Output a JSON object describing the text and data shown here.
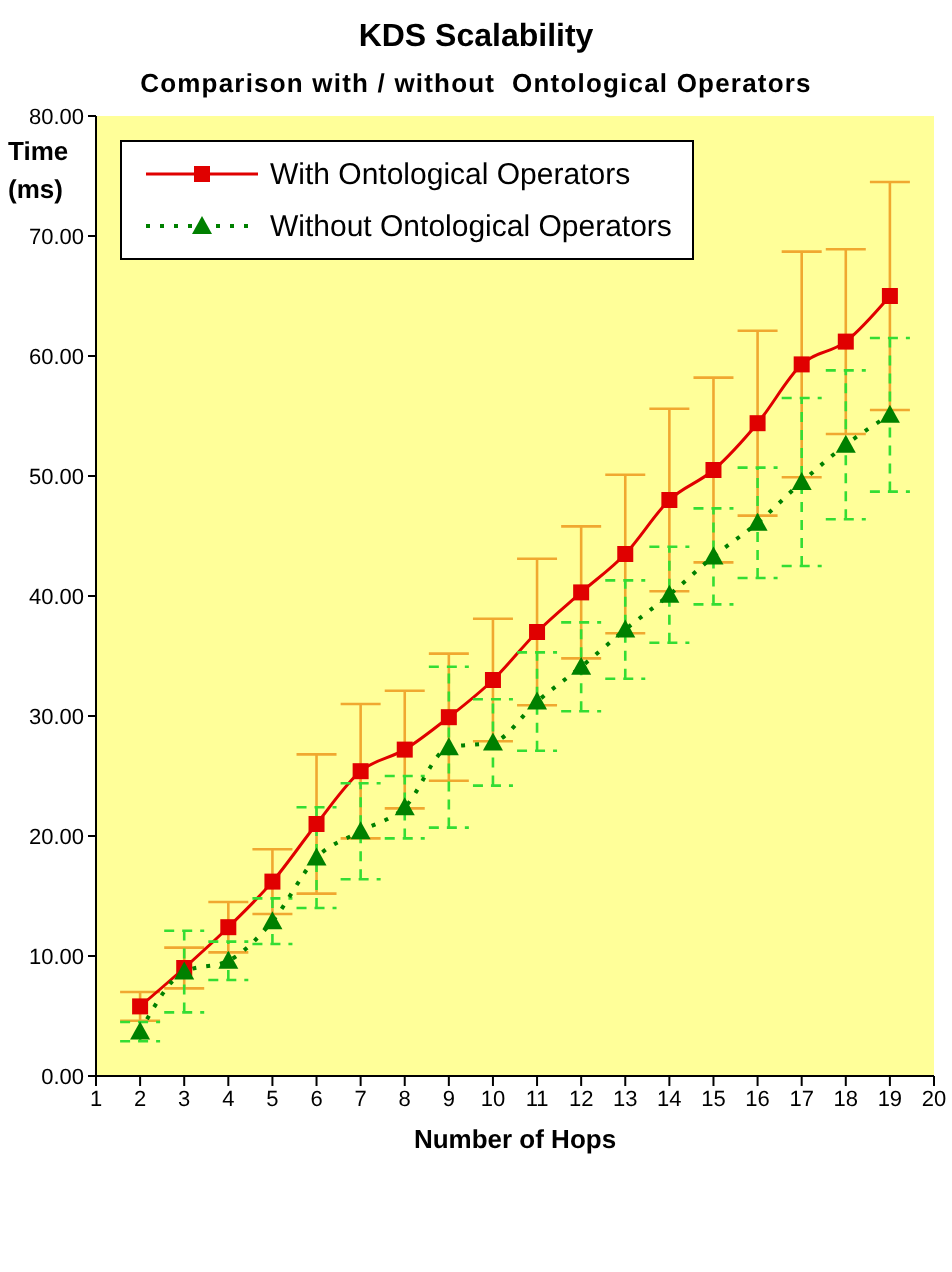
{
  "chart_data": {
    "type": "line",
    "title": "KDS Scalability",
    "subtitle": "Comparison with / without  Ontological Operators",
    "xlabel": "Number of Hops",
    "ylabel": "Time (ms)",
    "x": [
      2,
      3,
      4,
      5,
      6,
      7,
      8,
      9,
      10,
      11,
      12,
      13,
      14,
      15,
      16,
      17,
      18,
      19
    ],
    "series": [
      {
        "name": "With Ontological Operators",
        "color": "#e00000",
        "marker": "square",
        "line_style": "solid",
        "values": [
          5.8,
          9.0,
          12.4,
          16.2,
          21.0,
          25.4,
          27.2,
          29.9,
          33.0,
          37.0,
          40.3,
          43.5,
          48.0,
          50.5,
          54.4,
          59.3,
          61.2,
          65.0
        ],
        "errors": [
          1.2,
          1.7,
          2.1,
          2.7,
          5.8,
          5.6,
          4.9,
          5.3,
          5.1,
          6.1,
          5.5,
          6.6,
          7.6,
          7.7,
          7.7,
          9.4,
          7.7,
          9.5
        ]
      },
      {
        "name": "Without Ontological Operators",
        "color": "#008000",
        "marker": "triangle",
        "line_style": "dotted",
        "values": [
          3.7,
          8.7,
          9.6,
          12.9,
          18.2,
          20.4,
          22.4,
          27.4,
          27.8,
          31.2,
          34.1,
          37.2,
          40.1,
          43.3,
          46.1,
          49.5,
          52.6,
          55.1
        ],
        "errors": [
          0.8,
          3.4,
          1.6,
          1.9,
          4.2,
          4.0,
          2.6,
          6.7,
          3.6,
          4.1,
          3.7,
          4.1,
          4.0,
          4.0,
          4.6,
          7.0,
          6.2,
          6.4
        ]
      }
    ],
    "xlim": [
      1,
      20
    ],
    "xticks": [
      1,
      2,
      3,
      4,
      5,
      6,
      7,
      8,
      9,
      10,
      11,
      12,
      13,
      14,
      15,
      16,
      17,
      18,
      19,
      20
    ],
    "ylim": [
      0,
      80
    ],
    "yticks": [
      {
        "value": 0,
        "label": "0.00"
      },
      {
        "value": 10,
        "label": "10.00"
      },
      {
        "value": 20,
        "label": "20.00"
      },
      {
        "value": 30,
        "label": "30.00"
      },
      {
        "value": 40,
        "label": "40.00"
      },
      {
        "value": 50,
        "label": "50.00"
      },
      {
        "value": 60,
        "label": "60.00"
      },
      {
        "value": 70,
        "label": "70.00"
      },
      {
        "value": 80,
        "label": "80.00"
      }
    ],
    "grid": false,
    "legend": "top left"
  }
}
